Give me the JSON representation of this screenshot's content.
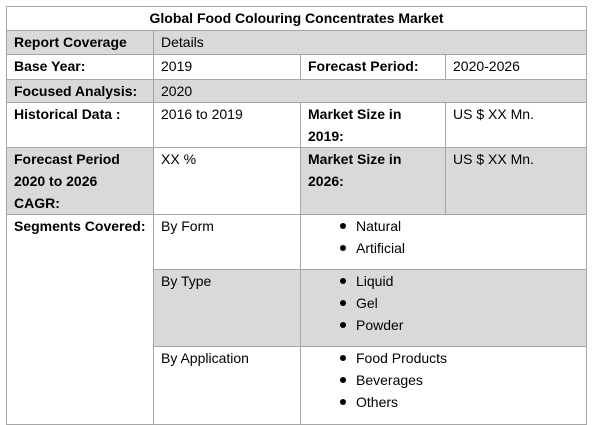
{
  "title": "Global Food Colouring Concentrates Market",
  "header": {
    "label": "Report Coverage",
    "value": "Details"
  },
  "base_year": {
    "label": "Base Year:",
    "value": "2019",
    "forecast_label": "Forecast Period:",
    "forecast_value": "2020-2026"
  },
  "focused": {
    "label": "Focused Analysis:",
    "value": "2020"
  },
  "historical": {
    "label": "Historical Data :",
    "value": "2016 to 2019",
    "size_label": "Market Size in 2019:",
    "size_value": "US $ XX Mn."
  },
  "forecast": {
    "label": "Forecast Period 2020 to 2026 CAGR:",
    "value": "XX %",
    "size_label": "Market Size in 2026:",
    "size_value": "US $ XX Mn."
  },
  "segments": {
    "label": "Segments Covered:",
    "groups": [
      {
        "name": "By Form",
        "items": [
          "Natural",
          "Artificial"
        ]
      },
      {
        "name": "By Type",
        "items": [
          "Liquid",
          "Gel",
          "Powder"
        ]
      },
      {
        "name": "By Application",
        "items": [
          "Food Products",
          "Beverages",
          "Others"
        ]
      }
    ]
  }
}
